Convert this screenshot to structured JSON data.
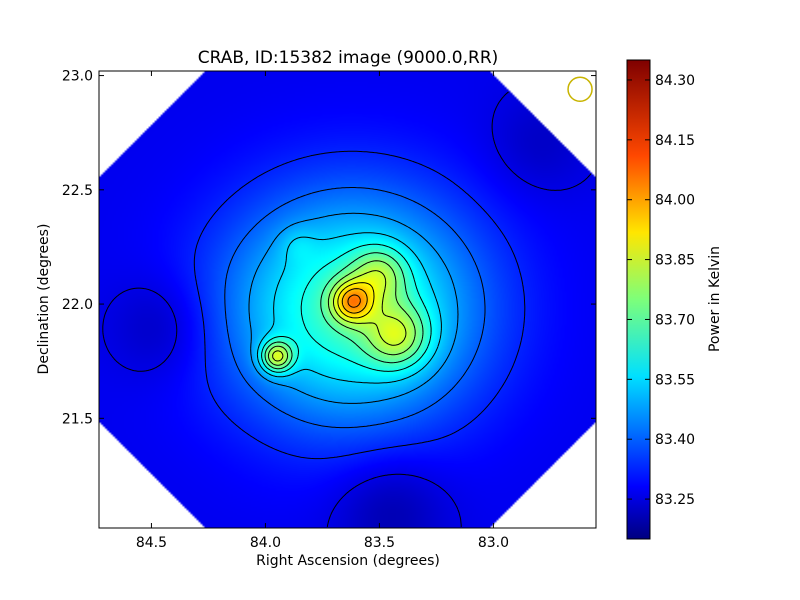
{
  "chart_data": {
    "type": "heatmap",
    "title": "CRAB, ID:15382 image (9000.0,RR)",
    "xlabel": "Right Ascension (degrees)",
    "ylabel": "Declination (degrees)",
    "xlim": [
      84.73,
      82.55
    ],
    "ylim": [
      21.02,
      23.02
    ],
    "x_reversed": true,
    "x_ticks": [
      84.5,
      84.0,
      83.5,
      83.0
    ],
    "x_tick_labels": [
      "84.5",
      "84.0",
      "83.5",
      "83.0"
    ],
    "y_ticks": [
      21.5,
      22.0,
      22.5,
      23.0
    ],
    "y_tick_labels": [
      "21.5",
      "22.0",
      "22.5",
      "23.0"
    ],
    "colorbar": {
      "label": "Power in Kelvin",
      "range": [
        83.15,
        84.35
      ],
      "ticks": [
        83.25,
        83.4,
        83.55,
        83.7,
        83.85,
        84.0,
        84.15,
        84.3
      ],
      "tick_labels": [
        "83.25",
        "83.40",
        "83.55",
        "83.70",
        "83.85",
        "84.00",
        "84.15",
        "84.30"
      ],
      "colormap": "jet"
    },
    "footprint": "square map rotated 45 degrees",
    "background_level": 83.28,
    "peaks": [
      {
        "ra": 83.62,
        "dec": 22.01,
        "value": 84.33
      },
      {
        "ra": 83.42,
        "dec": 21.86,
        "value": 84.1
      },
      {
        "ra": 83.5,
        "dec": 22.13,
        "value": 84.0
      },
      {
        "ra": 83.95,
        "dec": 21.77,
        "value": 84.12
      },
      {
        "ra": 83.86,
        "dec": 22.26,
        "value": 83.62
      }
    ],
    "contours": "black contour lines over the intensity map",
    "beam_marker": {
      "ra": 82.62,
      "dec": 22.94,
      "color": "#c8b400"
    }
  }
}
